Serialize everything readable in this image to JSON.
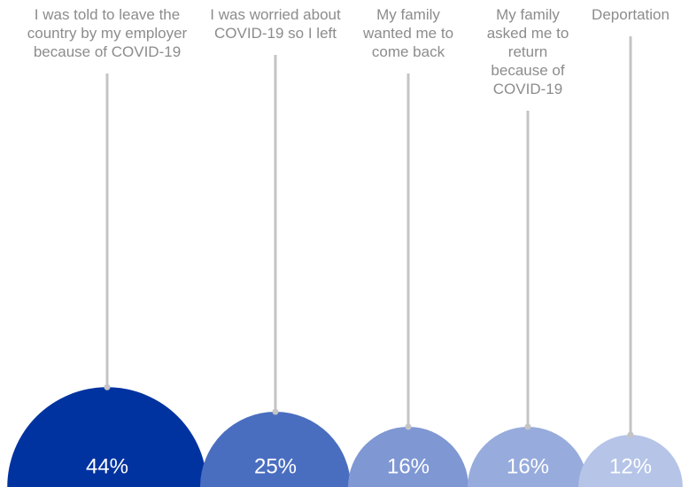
{
  "chart_data": {
    "type": "semicircle",
    "categories": [
      "I was told to leave the country by my employer because of COVID-19",
      "I was worried about COVID-19 so I left",
      "My family wanted me to come back",
      "My family asked me to return because of COVID-19",
      "Deportation"
    ],
    "values": [
      44,
      25,
      16,
      16,
      12
    ],
    "value_labels": [
      "44%",
      "25%",
      "16%",
      "16%",
      "12%"
    ],
    "colors": [
      "#0033a0",
      "#4a6ebf",
      "#7f97d3",
      "#97abdc",
      "#b5c4e7"
    ]
  }
}
